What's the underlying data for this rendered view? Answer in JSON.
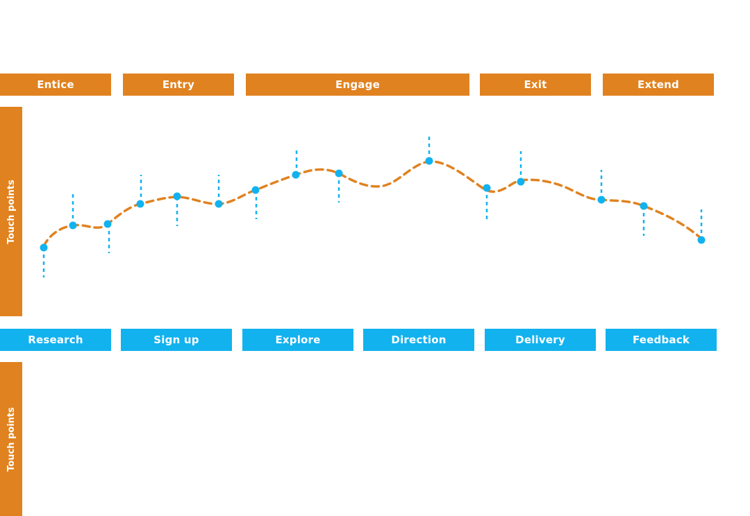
{
  "phases": [
    {
      "label": "Entice"
    },
    {
      "label": "Entry"
    },
    {
      "label": "Engage"
    },
    {
      "label": "Exit"
    },
    {
      "label": "Extend"
    }
  ],
  "steps": [
    {
      "label": "Research"
    },
    {
      "label": "Sign up"
    },
    {
      "label": "Explore"
    },
    {
      "label": "Direction"
    },
    {
      "label": "Delivery"
    },
    {
      "label": "Feedback"
    }
  ],
  "side_labels": {
    "top": "Touch points",
    "bottom": "Touch points"
  },
  "colors": {
    "phase": "#e08220",
    "step": "#12b2ef",
    "curve": "#e08220",
    "point": "#12b2ef"
  }
}
